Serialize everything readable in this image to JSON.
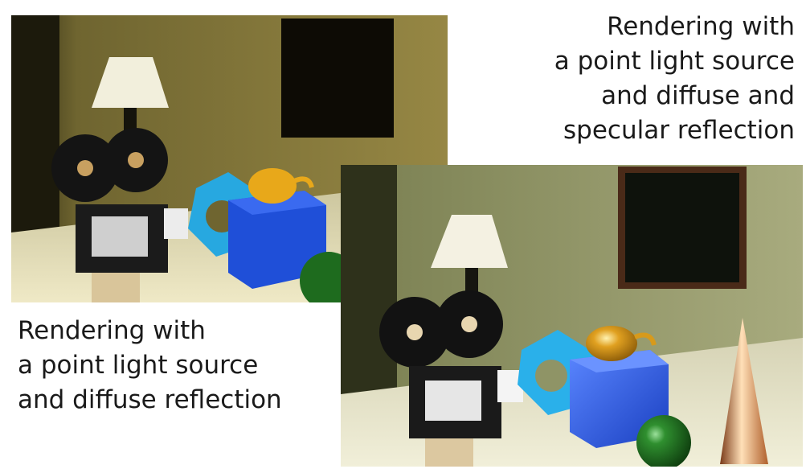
{
  "captions": {
    "specular": [
      "Rendering with",
      "a point light source",
      "and diffuse and",
      "specular reflection"
    ],
    "diffuse": [
      "Rendering with",
      "a point light source",
      "and diffuse reflection"
    ]
  },
  "colors": {
    "wall_diffuse": "#8a7a3a",
    "wall_specular": "#9a9d70",
    "floor": "#d8d2a8",
    "cube": "#1f4fd8",
    "torus": "#27a8e0",
    "teapot": "#e8a81a",
    "sphere": "#1e6b1e",
    "cone": "#d88a4a"
  }
}
